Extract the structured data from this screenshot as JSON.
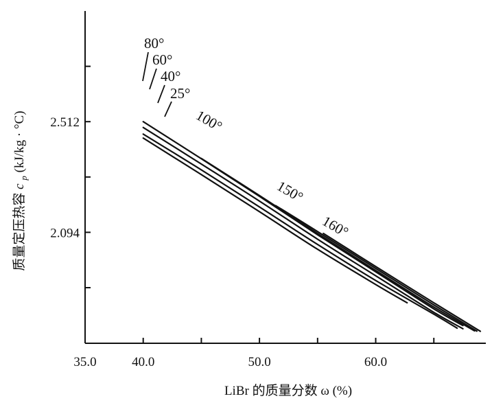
{
  "chart_data": {
    "type": "line",
    "xlabel": "LiBr 的质量分数 ω (%)",
    "ylabel": "质量定压热容 c_p (kJ/kg·°C)",
    "ylabel_parts": {
      "prefix": "质量定压热容 ",
      "symbol": "c",
      "subscript": "p",
      "unit": " (kJ/kg · °C)"
    },
    "x_ticks": [
      35.0,
      40.0,
      45.0,
      50.0,
      55.0,
      60.0,
      65.0
    ],
    "x_tick_labels": [
      "35.0",
      "40.0",
      "",
      "50.0",
      "",
      "60.0",
      ""
    ],
    "y_ticks": [
      2.721,
      2.512,
      2.303,
      2.094,
      1.885
    ],
    "y_tick_labels": [
      "",
      "2.512",
      "",
      "2.094",
      ""
    ],
    "xlim": [
      35.0,
      69.0
    ],
    "ylim": [
      1.675,
      2.93
    ],
    "grid": false,
    "series": [
      {
        "name": "80°",
        "x": [
          40.0,
          45.0,
          50.0,
          55.0,
          60.0,
          65.0,
          67.5
        ],
        "y": [
          2.512,
          2.372,
          2.23,
          2.085,
          1.945,
          1.805,
          1.742
        ]
      },
      {
        "name": "60°",
        "x": [
          40.0,
          45.0,
          50.0,
          55.0,
          60.0,
          65.0,
          67.5
        ],
        "y": [
          2.49,
          2.352,
          2.212,
          2.068,
          1.93,
          1.792,
          1.73
        ]
      },
      {
        "name": "40°",
        "x": [
          40.0,
          45.0,
          50.0,
          55.0,
          60.0,
          65.0,
          67.0
        ],
        "y": [
          2.465,
          2.33,
          2.19,
          2.048,
          1.912,
          1.785,
          1.732
        ]
      },
      {
        "name": "25°",
        "x": [
          40.0,
          45.0,
          50.0,
          55.0,
          60.0,
          62.7
        ],
        "y": [
          2.45,
          2.312,
          2.172,
          2.03,
          1.897,
          1.828
        ]
      },
      {
        "name": "100°",
        "x": [
          45.0,
          50.0,
          55.0,
          60.0,
          65.0,
          68.5
        ],
        "y": [
          2.373,
          2.233,
          2.09,
          1.95,
          1.812,
          1.722
        ]
      },
      {
        "name": "150°",
        "x": [
          51.4,
          55.0,
          60.0,
          65.0,
          68.7
        ],
        "y": [
          2.195,
          2.097,
          1.958,
          1.82,
          1.721
        ]
      },
      {
        "name": "160°",
        "x": [
          55.5,
          60.0,
          65.0,
          69.0
        ],
        "y": [
          2.09,
          1.965,
          1.828,
          1.72
        ]
      }
    ]
  }
}
